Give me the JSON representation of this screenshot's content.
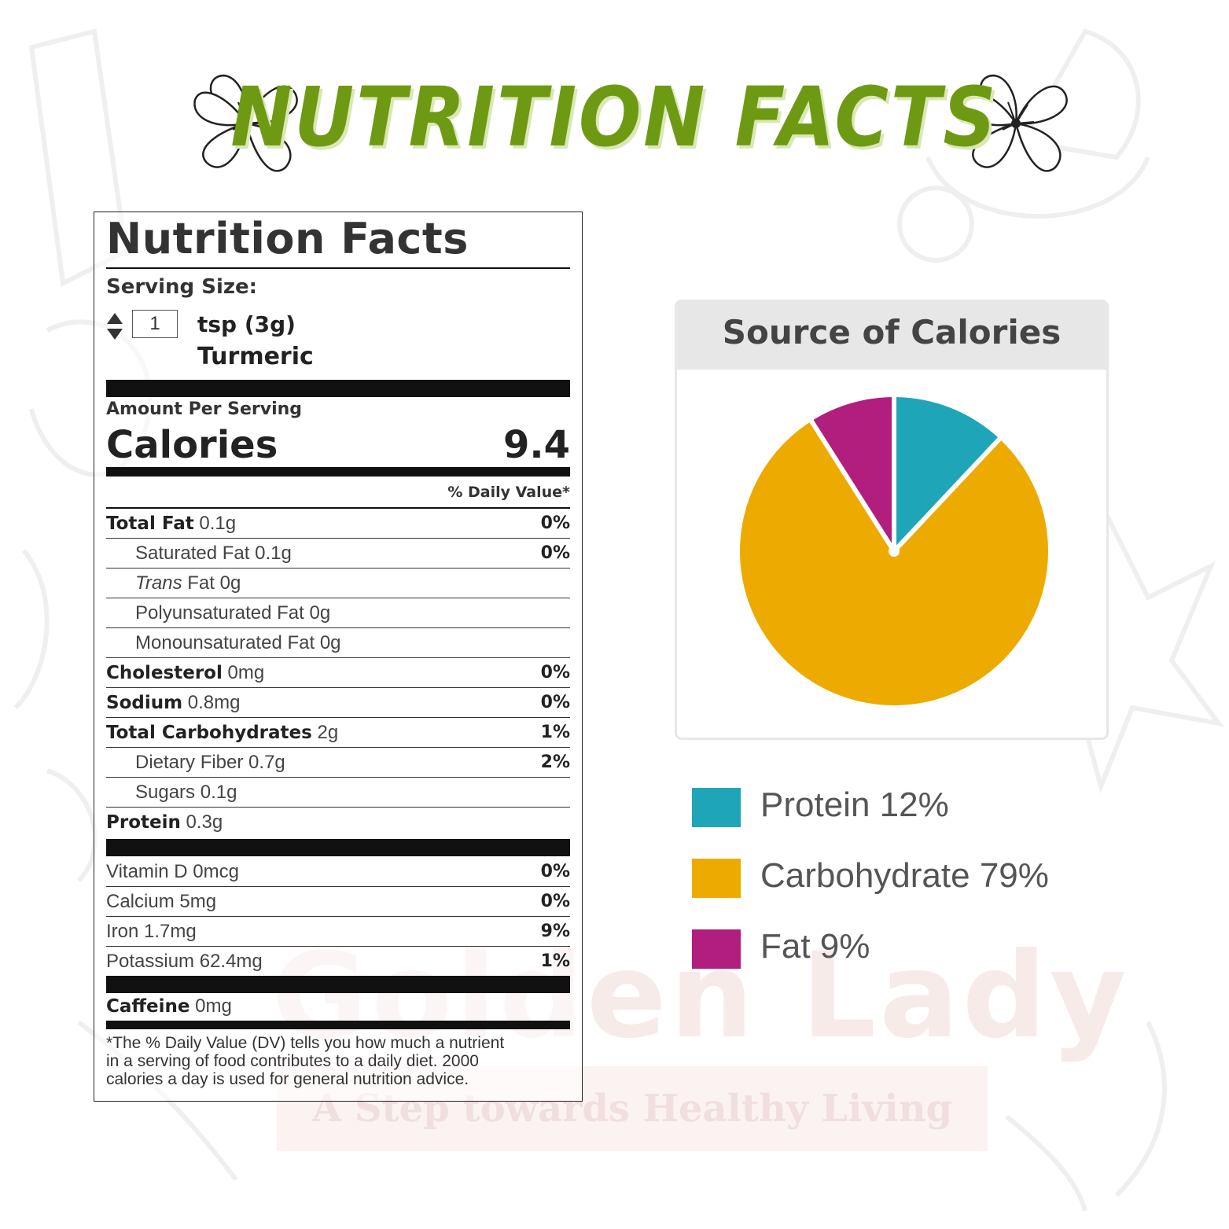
{
  "page": {
    "heading": "NUTRITION FACTS",
    "watermark_brand": "Golden Lady",
    "watermark_tagline": "A Step towards Healthy Living"
  },
  "label": {
    "title": "Nutrition Facts",
    "serving_size_label": "Serving Size:",
    "serving_quantity": "1",
    "serving_unit": "tsp (3g)",
    "food_name": "Turmeric",
    "amount_per_serving": "Amount Per Serving",
    "calories_label": "Calories",
    "calories_value": "9.4",
    "daily_value_header": "% Daily Value*",
    "nutrients": [
      {
        "name": "Total Fat",
        "amount": "0.1g",
        "dv": "0%"
      },
      {
        "name": "Saturated Fat",
        "amount": "0.1g",
        "dv": "0%"
      },
      {
        "name_italic": "Trans",
        "name": "Fat",
        "amount": "0g",
        "dv": ""
      },
      {
        "name": "Polyunsaturated Fat",
        "amount": "0g",
        "dv": ""
      },
      {
        "name": "Monounsaturated Fat",
        "amount": "0g",
        "dv": ""
      },
      {
        "name": "Cholesterol",
        "amount": "0mg",
        "dv": "0%"
      },
      {
        "name": "Sodium",
        "amount": "0.8mg",
        "dv": "0%"
      },
      {
        "name": "Total Carbohydrates",
        "amount": "2g",
        "dv": "1%"
      },
      {
        "name": "Dietary Fiber",
        "amount": "0.7g",
        "dv": "2%"
      },
      {
        "name": "Sugars",
        "amount": "0.1g",
        "dv": ""
      },
      {
        "name": "Protein",
        "amount": "0.3g",
        "dv": ""
      }
    ],
    "vitamins": [
      {
        "name": "Vitamin D",
        "amount": "0mcg",
        "dv": "0%"
      },
      {
        "name": "Calcium",
        "amount": "5mg",
        "dv": "0%"
      },
      {
        "name": "Iron",
        "amount": "1.7mg",
        "dv": "9%"
      },
      {
        "name": "Potassium",
        "amount": "62.4mg",
        "dv": "1%"
      }
    ],
    "caffeine": {
      "name": "Caffeine",
      "amount": "0mg"
    },
    "footnote_lines": [
      "*The % Daily Value (DV) tells you how much a nutrient",
      "in a serving of food contributes to a daily diet. 2000",
      "calories a day is used for general nutrition advice."
    ]
  },
  "calories_card": {
    "title": "Source of Calories"
  },
  "legend": [
    {
      "label": "Protein 12%",
      "color": "#1fa5b8"
    },
    {
      "label": "Carbohydrate 79%",
      "color": "#edaa00"
    },
    {
      "label": "Fat 9%",
      "color": "#b11e7d"
    }
  ],
  "chart_data": {
    "type": "pie",
    "title": "Source of Calories",
    "slices": [
      {
        "name": "Protein",
        "value": 12,
        "color": "#1fa5b8"
      },
      {
        "name": "Carbohydrate",
        "value": 79,
        "color": "#edaa00"
      },
      {
        "name": "Fat",
        "value": 9,
        "color": "#b11e7d"
      }
    ],
    "legend_placement": "bottom"
  }
}
